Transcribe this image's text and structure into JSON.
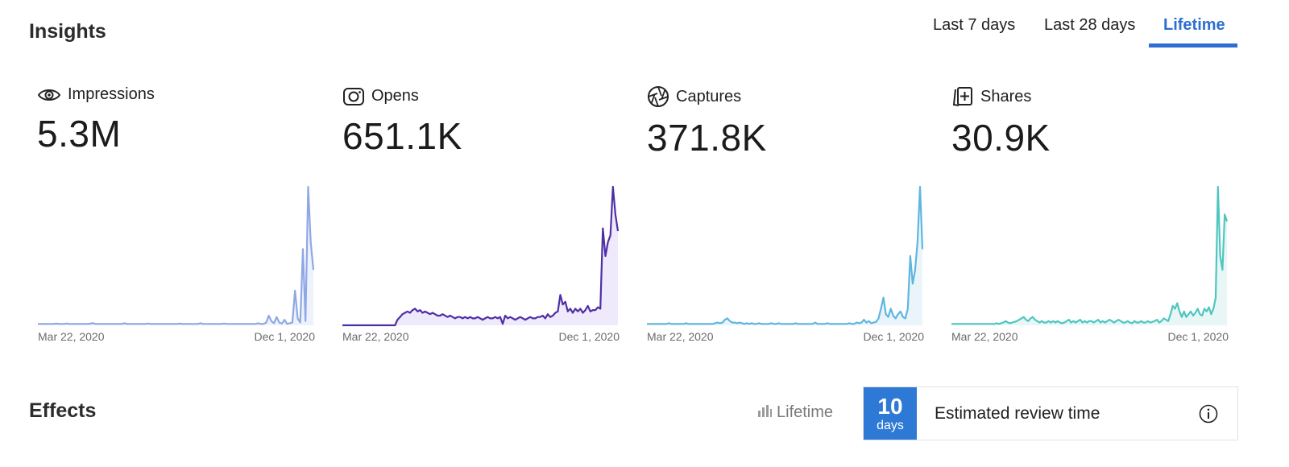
{
  "insights": {
    "title": "Insights",
    "tabs": [
      {
        "label": "Last 7 days",
        "active": false
      },
      {
        "label": "Last 28 days",
        "active": false
      },
      {
        "label": "Lifetime",
        "active": true
      }
    ],
    "accent_color": "#2d6fd0"
  },
  "metrics": [
    {
      "label": "Impressions",
      "value": "5.3M",
      "icon": "eye-icon",
      "color": "#8ea8e6",
      "fill": "#eef2fc"
    },
    {
      "label": "Opens",
      "value": "651.1K",
      "icon": "camera-icon",
      "color": "#4e2fa6",
      "fill": "#efeafb"
    },
    {
      "label": "Captures",
      "value": "371.8K",
      "icon": "shutter-icon",
      "color": "#5fb6df",
      "fill": "#e9f5fb"
    },
    {
      "label": "Shares",
      "value": "30.9K",
      "icon": "share-add-icon",
      "color": "#4fc6c0",
      "fill": "#e8f7f6"
    }
  ],
  "chart_data": [
    {
      "type": "area",
      "title": "Impressions",
      "x_start": "Mar 22, 2020",
      "x_end": "Dec 1, 2020",
      "values": [
        1,
        1,
        1,
        1,
        1,
        1,
        1,
        1.2,
        1,
        1,
        1,
        1.3,
        1,
        1,
        1,
        1,
        1,
        1,
        1,
        1,
        1.2,
        1.5,
        1,
        1,
        1,
        1,
        1,
        1,
        1,
        1,
        1,
        1,
        1,
        1.5,
        1,
        1,
        1,
        1,
        1,
        1,
        1,
        1,
        1.3,
        1,
        1,
        1,
        1,
        1,
        1,
        1,
        1,
        1,
        1,
        1,
        1.2,
        1,
        1,
        1,
        1,
        1,
        1,
        1,
        1.5,
        1,
        1,
        1,
        1,
        1,
        1,
        1,
        1,
        1.3,
        1,
        1,
        1,
        1,
        1,
        1,
        1,
        1,
        1,
        1,
        1,
        1,
        1.5,
        1,
        1,
        2,
        7,
        3,
        1.5,
        6,
        2,
        1.2,
        4,
        1,
        1.5,
        2,
        25,
        5,
        2,
        55,
        3,
        100,
        60,
        40
      ]
    },
    {
      "type": "area",
      "title": "Opens",
      "x_start": "Mar 22, 2020",
      "x_end": "Dec 1, 2020",
      "values": [
        0,
        0,
        0,
        0,
        0,
        0,
        0,
        0,
        0,
        0,
        0,
        0,
        0,
        0,
        0,
        0,
        0,
        0,
        0,
        0,
        0,
        0,
        4,
        6,
        8,
        9,
        10,
        9,
        11,
        12,
        10,
        11,
        9,
        10,
        9,
        8,
        9,
        8,
        7,
        7,
        8,
        7,
        6,
        7,
        6,
        5,
        6,
        6,
        5,
        6,
        5,
        6,
        5,
        5,
        6,
        5,
        4,
        5,
        6,
        5,
        5,
        6,
        5,
        6,
        1,
        7,
        5,
        6,
        5,
        4,
        5,
        6,
        5,
        4,
        5,
        6,
        5,
        5,
        6,
        6,
        7,
        5,
        8,
        6,
        7,
        9,
        10,
        22,
        15,
        17,
        10,
        12,
        9,
        12,
        10,
        12,
        9,
        11,
        14,
        10,
        11,
        11,
        13,
        12,
        70,
        50,
        60,
        65,
        100,
        80,
        68
      ]
    },
    {
      "type": "area",
      "title": "Captures",
      "x_start": "Mar 22, 2020",
      "x_end": "Dec 1, 2020",
      "values": [
        1,
        1,
        1,
        1,
        1,
        1,
        1,
        1,
        1,
        1.5,
        1,
        1,
        1,
        1,
        1,
        1,
        1.5,
        1,
        1,
        1,
        1,
        1,
        1,
        1,
        1,
        1,
        1,
        1,
        1.5,
        2,
        1.5,
        2,
        4,
        5,
        3,
        2,
        2,
        1.5,
        2,
        1.5,
        1,
        1.5,
        1,
        1.5,
        1,
        1,
        1.5,
        1,
        1,
        1,
        1,
        1.5,
        1,
        1,
        1.5,
        1,
        1,
        1,
        1,
        1,
        1,
        1.5,
        1,
        1,
        1,
        1,
        1,
        1,
        1,
        2,
        1,
        1,
        1,
        1,
        1.5,
        1,
        1,
        1,
        1,
        1,
        1,
        1,
        1,
        1.5,
        1,
        1,
        2,
        1.5,
        2,
        4,
        2,
        3,
        1.5,
        2,
        2.5,
        5,
        12,
        20,
        8,
        6,
        12,
        7,
        5,
        8,
        10,
        6,
        5,
        12,
        50,
        30,
        40,
        60,
        100,
        55
      ]
    },
    {
      "type": "area",
      "title": "Shares",
      "x_start": "Mar 22, 2020",
      "x_end": "Dec 1, 2020",
      "values": [
        1,
        1,
        1,
        1,
        1,
        1,
        1,
        1,
        1,
        1,
        1,
        1,
        1,
        1,
        1,
        1,
        1,
        1,
        1,
        1,
        1.5,
        1,
        1.5,
        2,
        3,
        2,
        1.5,
        2,
        2.5,
        3,
        4,
        5,
        6,
        4,
        3,
        5,
        6,
        4,
        3,
        2,
        3,
        2,
        2,
        3,
        2,
        3,
        2,
        3,
        2,
        1.5,
        2,
        3,
        4,
        2,
        3,
        2,
        3,
        4,
        2,
        3,
        2,
        3,
        3,
        2,
        3,
        4,
        2,
        3,
        2,
        3,
        4,
        3,
        2,
        3,
        4,
        3,
        2,
        2,
        3,
        2,
        1.5,
        3,
        2,
        2,
        3,
        2,
        2,
        3,
        2,
        2.5,
        3,
        4,
        2,
        3,
        5,
        4,
        3,
        8,
        14,
        12,
        16,
        10,
        6,
        10,
        6,
        8,
        10,
        7,
        9,
        12,
        8,
        7,
        12,
        10,
        13,
        8,
        12,
        20,
        100,
        50,
        40,
        80,
        75
      ]
    }
  ],
  "effects": {
    "title": "Effects",
    "filter_label": "Lifetime",
    "filter_icon": "bar-chart-icon",
    "review": {
      "days_number": "10",
      "days_unit": "days",
      "label": "Estimated review time",
      "info_icon": "info-icon",
      "badge_color": "#2f79d6"
    }
  }
}
